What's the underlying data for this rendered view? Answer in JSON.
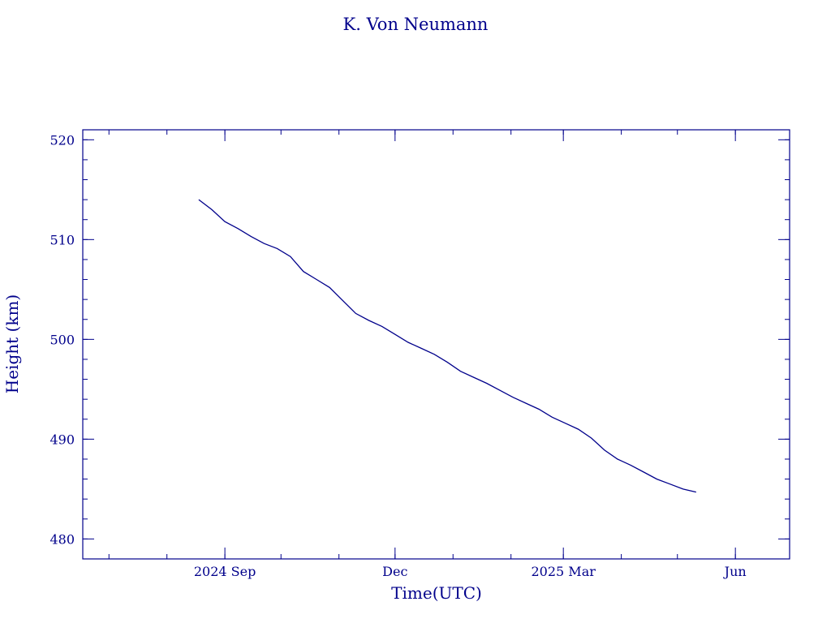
{
  "chart_data": {
    "type": "line",
    "title": "K. Von Neumann",
    "xlabel": "Time(UTC)",
    "ylabel": "Height (km)",
    "x_ticks": [
      {
        "date": "2024-09-01",
        "label": "2024 Sep"
      },
      {
        "date": "2024-12-01",
        "label": "Dec"
      },
      {
        "date": "2025-03-01",
        "label": "2025 Mar"
      },
      {
        "date": "2025-06-01",
        "label": "Jun"
      }
    ],
    "xlim": [
      "2024-06-17",
      "2025-06-30"
    ],
    "ylim": [
      478,
      521
    ],
    "y_ticks": [
      480,
      490,
      500,
      510,
      520
    ],
    "y_minor_step": 2,
    "x_minor": "monthly",
    "grid": false,
    "line_color": "#00008b",
    "series": [
      {
        "dates": [
          "2024-08-18",
          "2024-08-25",
          "2024-09-01",
          "2024-09-08",
          "2024-09-15",
          "2024-09-22",
          "2024-09-29",
          "2024-10-06",
          "2024-10-13",
          "2024-10-20",
          "2024-10-27",
          "2024-11-03",
          "2024-11-10",
          "2024-11-17",
          "2024-11-24",
          "2024-12-01",
          "2024-12-08",
          "2024-12-15",
          "2024-12-22",
          "2024-12-29",
          "2025-01-05",
          "2025-01-12",
          "2025-01-19",
          "2025-01-26",
          "2025-02-02",
          "2025-02-09",
          "2025-02-16",
          "2025-02-23",
          "2025-03-02",
          "2025-03-09",
          "2025-03-16",
          "2025-03-23",
          "2025-03-30",
          "2025-04-06",
          "2025-04-13",
          "2025-04-20",
          "2025-04-27",
          "2025-05-04",
          "2025-05-11"
        ],
        "values": [
          514.0,
          513.0,
          511.8,
          511.1,
          510.3,
          509.6,
          509.1,
          508.3,
          506.8,
          506.0,
          505.2,
          503.9,
          502.6,
          501.9,
          501.3,
          500.5,
          499.7,
          499.1,
          498.5,
          497.7,
          496.8,
          496.2,
          495.6,
          494.9,
          494.2,
          493.6,
          493.0,
          492.2,
          491.6,
          491.0,
          490.1,
          488.9,
          488.0,
          487.4,
          486.7,
          486.0,
          485.5,
          485.0,
          484.7
        ]
      }
    ]
  }
}
